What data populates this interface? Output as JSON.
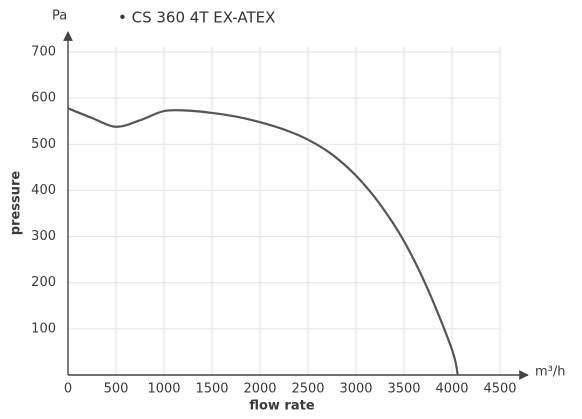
{
  "chart_data": {
    "type": "line",
    "title": "• CS 360 4T EX-ATEX",
    "y_unit": "Pa",
    "x_unit": "m³/h",
    "y_label": "pressure",
    "x_label": "flow rate",
    "x": [
      0,
      250,
      500,
      750,
      1000,
      1250,
      1500,
      1750,
      2000,
      2250,
      2500,
      2750,
      3000,
      3250,
      3500,
      3750,
      4000,
      4060
    ],
    "values": [
      578,
      557,
      538,
      552,
      572,
      573,
      568,
      560,
      548,
      532,
      510,
      478,
      432,
      370,
      290,
      185,
      55,
      0
    ],
    "color": "#555555",
    "xlim": [
      0,
      4500
    ],
    "xticks": [
      0,
      500,
      1000,
      1500,
      2000,
      2500,
      3000,
      3500,
      4000,
      4500
    ],
    "ylim": [
      0,
      700
    ],
    "yticks": [
      100,
      200,
      300,
      400,
      500,
      600,
      700
    ],
    "grid": true
  }
}
